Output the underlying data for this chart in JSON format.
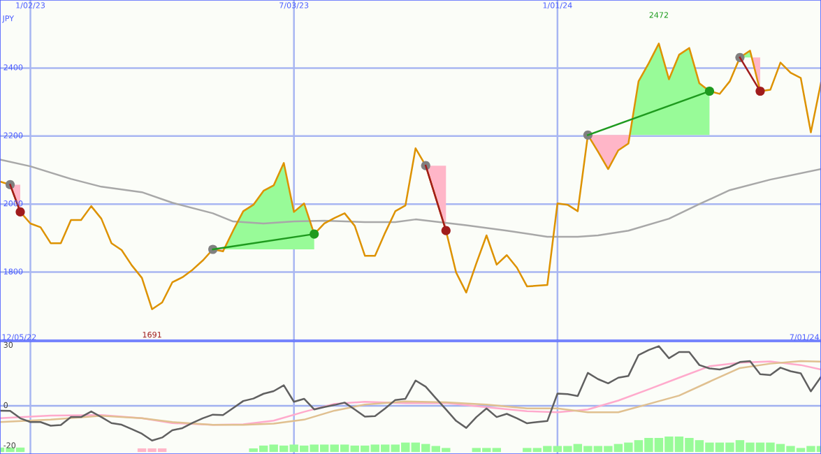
{
  "chart_data": [
    {
      "type": "line",
      "ylabel": "JPY",
      "x": [
        "2022-12-12",
        "2022-12-19",
        "2022-12-26",
        "2023-01-02",
        "2023-01-09",
        "2023-01-16",
        "2023-01-23",
        "2023-01-30",
        "2023-02-06",
        "2023-02-13",
        "2023-02-20",
        "2023-02-27",
        "2023-03-06",
        "2023-03-13",
        "2023-03-20",
        "2023-03-27",
        "2023-04-03",
        "2023-04-10",
        "2023-04-17",
        "2023-04-24",
        "2023-05-01",
        "2023-05-08",
        "2023-05-15",
        "2023-05-22",
        "2023-05-29",
        "2023-06-05",
        "2023-06-12",
        "2023-06-19",
        "2023-06-26",
        "2023-07-03",
        "2023-07-10",
        "2023-07-17",
        "2023-07-24",
        "2023-07-31",
        "2023-08-07",
        "2023-08-14",
        "2023-08-21",
        "2023-08-28",
        "2023-09-04",
        "2023-09-11",
        "2023-09-18",
        "2023-09-25",
        "2023-10-02",
        "2023-10-09",
        "2023-10-16",
        "2023-10-23",
        "2023-10-30",
        "2023-11-06",
        "2023-11-13",
        "2023-11-20",
        "2023-11-27",
        "2023-12-04",
        "2023-12-11",
        "2023-12-18",
        "2023-12-25",
        "2024-01-01",
        "2024-01-08",
        "2024-01-15",
        "2024-01-22",
        "2024-01-29",
        "2024-02-05",
        "2024-02-12",
        "2024-02-19",
        "2024-02-26",
        "2024-03-04",
        "2024-03-11",
        "2024-03-18",
        "2024-03-25",
        "2024-04-01",
        "2024-04-08",
        "2024-04-15",
        "2024-04-22",
        "2024-04-29",
        "2024-05-06",
        "2024-05-13",
        "2024-05-20",
        "2024-05-27",
        "2024-06-03",
        "2024-06-10",
        "2024-06-17",
        "2024-06-24",
        "2024-07-01"
      ],
      "series": [
        {
          "color": "#a8a8a8",
          "x": [
            "2022-12-12",
            "2023-01-02",
            "2023-01-30",
            "2023-02-20",
            "2023-03-20",
            "2023-04-10",
            "2023-05-08",
            "2023-05-22",
            "2023-06-12",
            "2023-07-03",
            "2023-07-24",
            "2023-08-21",
            "2023-09-11",
            "2023-09-25",
            "2023-10-30",
            "2023-11-27",
            "2023-12-25",
            "2024-01-15",
            "2024-01-29",
            "2024-02-19",
            "2024-03-18",
            "2024-04-08",
            "2024-04-29",
            "2024-05-27",
            "2024-07-01"
          ],
          "values": [
            2131,
            2111,
            2074,
            2051,
            2035,
            2004,
            1973,
            1949,
            1943,
            1949,
            1951,
            1947,
            1947,
            1955,
            1938,
            1922,
            1904,
            1904,
            1908,
            1922,
            1957,
            2000,
            2041,
            2072,
            2103
          ]
        },
        {
          "color": "#dd9200",
          "values": [
            2066,
            2057,
            1977,
            1943,
            1932,
            1885,
            1885,
            1953,
            1953,
            1994,
            1957,
            1885,
            1865,
            1820,
            1783,
            1691,
            1711,
            1770,
            1785,
            1807,
            1834,
            1867,
            1861,
            1922,
            1979,
            1998,
            2039,
            2055,
            2121,
            1977,
            2002,
            1912,
            1943,
            1959,
            1973,
            1936,
            1848,
            1848,
            1916,
            1979,
            1996,
            2164,
            2113,
            2018,
            1922,
            1799,
            1740,
            1826,
            1908,
            1822,
            1850,
            1813,
            1758,
            1760,
            1762,
            2002,
            1998,
            1979,
            2203,
            2154,
            2103,
            2158,
            2178,
            2361,
            2414,
            2472,
            2367,
            2439,
            2459,
            2355,
            2332,
            2324,
            2361,
            2431,
            2451,
            2332,
            2336,
            2416,
            2386,
            2371,
            2211,
            2357
          ]
        },
        {
          "color": "#a01c1c",
          "x": [
            "2022-12-19",
            "2022-12-26"
          ],
          "values": [
            2057,
            1977
          ]
        },
        {
          "color": "#1e9a1e",
          "x": [
            "2023-05-08",
            "2023-07-17"
          ],
          "values": [
            1867,
            1912
          ]
        },
        {
          "color": "#a01c1c",
          "x": [
            "2023-10-02",
            "2023-10-16"
          ],
          "values": [
            2113,
            1922
          ]
        },
        {
          "color": "#1e9a1e",
          "x": [
            "2024-01-22",
            "2024-04-15"
          ],
          "values": [
            2203,
            2332
          ]
        },
        {
          "color": "#a01c1c",
          "x": [
            "2024-05-06",
            "2024-05-20"
          ],
          "values": [
            2431,
            2332
          ]
        },
        {
          "type": "scatter",
          "x": [
            "2022-12-19",
            "2022-12-26",
            "2023-05-08",
            "2023-07-17",
            "2023-10-02",
            "2023-10-16",
            "2024-01-22",
            "2024-04-15",
            "2024-05-06",
            "2024-05-20"
          ],
          "values": [
            2057,
            1977,
            1867,
            1912,
            2113,
            1922,
            2203,
            2332,
            2431,
            2332
          ],
          "colors": [
            "#808080",
            "#a01c1c",
            "#808080",
            "#1e9a1e",
            "#808080",
            "#a01c1c",
            "#808080",
            "#1e9a1e",
            "#808080",
            "#a01c1c"
          ]
        }
      ],
      "xlim": [
        "2022-12-12",
        "2024-07-01"
      ],
      "xticks": [
        {
          "value": "2023-01-02",
          "label": "1/02/23"
        },
        {
          "value": "2023-07-03",
          "label": "7/03/23"
        },
        {
          "value": "2024-01-01",
          "label": "1/01/24"
        }
      ],
      "ylim": [
        1600,
        2600
      ],
      "yticks": [
        1800,
        2000,
        2200,
        2400
      ],
      "grid": true,
      "annotations": [
        "2472",
        "1691"
      ]
    },
    {
      "type": "line",
      "x": [
        "2022-12-12",
        "2022-12-19",
        "2022-12-26",
        "2023-01-02",
        "2023-01-09",
        "2023-01-16",
        "2023-01-23",
        "2023-01-30",
        "2023-02-06",
        "2023-02-13",
        "2023-02-20",
        "2023-02-27",
        "2023-03-06",
        "2023-03-13",
        "2023-03-20",
        "2023-03-27",
        "2023-04-03",
        "2023-04-10",
        "2023-04-17",
        "2023-04-24",
        "2023-05-01",
        "2023-05-08",
        "2023-05-15",
        "2023-05-22",
        "2023-05-29",
        "2023-06-05",
        "2023-06-12",
        "2023-06-19",
        "2023-06-26",
        "2023-07-03",
        "2023-07-10",
        "2023-07-17",
        "2023-07-24",
        "2023-07-31",
        "2023-08-07",
        "2023-08-14",
        "2023-08-21",
        "2023-08-28",
        "2023-09-04",
        "2023-09-11",
        "2023-09-18",
        "2023-09-25",
        "2023-10-02",
        "2023-10-09",
        "2023-10-16",
        "2023-10-23",
        "2023-10-30",
        "2023-11-06",
        "2023-11-13",
        "2023-11-20",
        "2023-11-27",
        "2023-12-04",
        "2023-12-11",
        "2023-12-18",
        "2023-12-25",
        "2024-01-01",
        "2024-01-08",
        "2024-01-15",
        "2024-01-22",
        "2024-01-29",
        "2024-02-05",
        "2024-02-12",
        "2024-02-19",
        "2024-02-26",
        "2024-03-04",
        "2024-03-11",
        "2024-03-18",
        "2024-03-25",
        "2024-04-01",
        "2024-04-08",
        "2024-04-15",
        "2024-04-22",
        "2024-04-29",
        "2024-05-06",
        "2024-05-13",
        "2024-05-20",
        "2024-05-27",
        "2024-06-03",
        "2024-06-10",
        "2024-06-17",
        "2024-06-24",
        "2024-07-01"
      ],
      "series": [
        {
          "type": "bar",
          "color": "#98fb98",
          "values": [
            2.2,
            2.2,
            2.2,
            null,
            null,
            null,
            null,
            null,
            null,
            null,
            null,
            null,
            null,
            null,
            null,
            null,
            null,
            null,
            null,
            null,
            null,
            null,
            null,
            null,
            null,
            1.8,
            3.2,
            3.7,
            3.2,
            3.7,
            3.2,
            3.7,
            3.7,
            3.7,
            3.7,
            3.2,
            3.2,
            3.7,
            3.7,
            3.7,
            4.7,
            4.7,
            4.0,
            3.0,
            2.0,
            null,
            null,
            2.0,
            2.0,
            2.0,
            null,
            null,
            2.0,
            2.0,
            3.0,
            3.0,
            3.0,
            4.0,
            3.0,
            3.0,
            3.0,
            4.0,
            4.7,
            5.9,
            7.0,
            7.0,
            7.7,
            7.7,
            7.0,
            5.9,
            4.7,
            4.7,
            4.7,
            5.9,
            4.7,
            4.7,
            4.7,
            4.0,
            3.0,
            2.0,
            3.0,
            3.0
          ],
          "base": [
            -23,
            -23,
            -23,
            null,
            null,
            null,
            null,
            null,
            null,
            null,
            null,
            null,
            null,
            null,
            null,
            null,
            null,
            null,
            null,
            null,
            null,
            null,
            null,
            null,
            null,
            -23,
            -23,
            -23,
            -23,
            -23,
            -23,
            -23,
            -23,
            -23,
            -23,
            -23,
            -23,
            -23,
            -23,
            -23,
            -23,
            -23,
            -23,
            -23,
            -23,
            null,
            null,
            -23,
            -23,
            -23,
            null,
            null,
            -23,
            -23,
            -23,
            -23,
            -23,
            -23,
            -23,
            -23,
            -23,
            -23,
            -23,
            -23,
            -23,
            -23,
            -23,
            -23,
            -23,
            -23,
            -23,
            -23,
            -23,
            -23,
            -23,
            -23,
            -23,
            -23,
            -23,
            -23,
            -23,
            -23
          ]
        },
        {
          "type": "bar",
          "color": "#ffb6c8",
          "values": [
            null,
            null,
            null,
            null,
            null,
            null,
            null,
            null,
            null,
            null,
            null,
            null,
            null,
            null,
            1.8,
            1.8,
            1.8,
            null,
            null,
            null,
            null,
            null,
            null,
            null,
            null,
            null,
            null,
            null,
            null,
            null,
            null,
            null,
            null,
            null,
            null,
            null,
            null,
            null,
            null,
            null,
            null,
            null,
            null,
            null,
            null,
            null,
            null,
            null,
            null,
            null,
            null,
            null,
            null,
            null,
            null,
            null,
            null,
            null,
            null,
            null,
            null,
            null,
            null,
            null,
            null,
            null,
            null,
            null,
            null,
            null,
            null,
            null,
            null,
            null,
            null,
            null,
            null,
            null,
            null,
            null,
            null,
            null
          ],
          "base": [
            null,
            null,
            null,
            null,
            null,
            null,
            null,
            null,
            null,
            null,
            null,
            null,
            null,
            null,
            -23,
            -23,
            -23,
            null,
            null,
            null,
            null,
            null,
            null,
            null,
            null,
            null,
            null,
            null,
            null,
            null,
            null,
            null,
            null,
            null,
            null,
            null,
            null,
            null,
            null,
            null,
            null,
            null,
            null,
            null,
            null,
            null,
            null,
            null,
            null,
            null,
            null,
            null,
            null,
            null,
            null,
            null,
            null,
            null,
            null,
            null,
            null,
            null,
            null,
            null,
            null,
            null,
            null,
            null,
            null,
            null,
            null,
            null,
            null,
            null,
            null,
            null,
            null,
            null,
            null,
            null,
            null,
            null
          ]
        },
        {
          "color": "#ffaacc",
          "x": [
            "2022-12-12",
            "2023-01-16",
            "2023-02-20",
            "2023-03-20",
            "2023-04-10",
            "2023-05-08",
            "2023-05-29",
            "2023-06-19",
            "2023-07-10",
            "2023-07-31",
            "2023-08-21",
            "2023-09-18",
            "2023-10-16",
            "2023-11-13",
            "2023-12-11",
            "2024-01-01",
            "2024-01-22",
            "2024-02-12",
            "2024-03-04",
            "2024-03-25",
            "2024-04-15",
            "2024-05-06",
            "2024-05-27",
            "2024-06-17",
            "2024-07-01"
          ],
          "values": [
            -6.2,
            -4.9,
            -4.6,
            -6.2,
            -8.6,
            -9.5,
            -9.2,
            -7.4,
            -3.0,
            1.0,
            2.0,
            1.3,
            1.4,
            -0.7,
            -2.7,
            -3.2,
            -1.8,
            2.6,
            8.2,
            14.0,
            19.7,
            21.5,
            22.1,
            20.3,
            18.1
          ]
        },
        {
          "color": "#e0c090",
          "x": [
            "2022-12-12",
            "2023-01-16",
            "2023-02-20",
            "2023-03-20",
            "2023-04-10",
            "2023-05-08",
            "2023-05-29",
            "2023-06-19",
            "2023-07-10",
            "2023-07-31",
            "2023-08-21",
            "2023-09-18",
            "2023-10-16",
            "2023-11-13",
            "2023-12-11",
            "2024-01-01",
            "2024-01-22",
            "2024-02-12",
            "2024-03-04",
            "2024-03-25",
            "2024-04-15",
            "2024-05-06",
            "2024-05-27",
            "2024-06-17",
            "2024-07-01"
          ],
          "values": [
            -8.1,
            -6.9,
            -5.0,
            -6.2,
            -8.1,
            -9.5,
            -9.5,
            -8.9,
            -6.9,
            -2.4,
            0.6,
            2.2,
            1.7,
            0.6,
            -1.3,
            -1.3,
            -3.2,
            -3.2,
            0.9,
            5.1,
            12.0,
            18.8,
            21.0,
            22.3,
            22.0
          ]
        },
        {
          "color": "#606060",
          "values": [
            -2.4,
            -2.5,
            -6.2,
            -8.1,
            -8.1,
            -9.9,
            -9.6,
            -5.6,
            -5.6,
            -2.8,
            -5.6,
            -8.6,
            -9.4,
            -11.6,
            -13.9,
            -17.3,
            -15.8,
            -12.2,
            -11.1,
            -8.5,
            -6.2,
            -4.4,
            -4.6,
            -1.1,
            2.4,
            3.6,
            6.0,
            7.3,
            10.2,
            2.0,
            3.5,
            -1.8,
            -0.6,
            0.4,
            1.6,
            -1.8,
            -5.4,
            -5.1,
            -1.3,
            2.9,
            3.5,
            12.6,
            9.5,
            3.8,
            -1.8,
            -7.5,
            -11.0,
            -5.6,
            -1.3,
            -5.6,
            -4.0,
            -6.2,
            -8.7,
            -8.1,
            -7.6,
            6.1,
            5.8,
            4.9,
            16.4,
            13.3,
            11.2,
            14.0,
            14.9,
            25.3,
            27.8,
            29.7,
            23.7,
            26.8,
            26.8,
            20.3,
            18.6,
            18.1,
            19.4,
            21.8,
            22.3,
            15.7,
            15.3,
            19.0,
            17.2,
            16.2,
            7.2,
            14.4
          ]
        }
      ],
      "xlim": [
        "2022-12-12",
        "2024-07-01"
      ],
      "xticks": [
        {
          "value": "2023-01-02",
          "label": null
        },
        {
          "value": "2023-07-03",
          "label": null
        },
        {
          "value": "2024-01-01",
          "label": null
        }
      ],
      "ylim": [
        -24,
        32
      ],
      "yticks": [
        -20,
        0,
        30
      ],
      "grid": "x",
      "tick_labels": "y",
      "ref_lines": [
        {
          "axis": "y",
          "value": 0,
          "color": "#a0b0f0"
        }
      ],
      "annotations": [
        "12/05/22",
        "7/01/24"
      ]
    }
  ]
}
